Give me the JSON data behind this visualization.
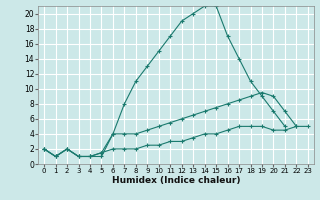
{
  "title": "",
  "xlabel": "Humidex (Indice chaleur)",
  "bg_color": "#cce8e8",
  "line_color": "#1a7a6e",
  "grid_color": "#ffffff",
  "xlim": [
    -0.5,
    23.5
  ],
  "ylim": [
    0,
    21
  ],
  "xticks": [
    0,
    1,
    2,
    3,
    4,
    5,
    6,
    7,
    8,
    9,
    10,
    11,
    12,
    13,
    14,
    15,
    16,
    17,
    18,
    19,
    20,
    21,
    22,
    23
  ],
  "yticks": [
    0,
    2,
    4,
    6,
    8,
    10,
    12,
    14,
    16,
    18,
    20
  ],
  "line1_x": [
    0,
    1,
    2,
    3,
    4,
    5,
    6,
    7,
    8,
    9,
    10,
    11,
    12,
    13,
    14,
    15,
    16,
    17,
    18,
    19,
    20,
    21
  ],
  "line1_y": [
    2,
    1,
    2,
    1,
    1,
    1,
    4,
    8,
    11,
    13,
    15,
    17,
    19,
    20,
    21,
    21,
    17,
    14,
    11,
    9,
    7,
    5
  ],
  "line2_x": [
    0,
    1,
    2,
    3,
    4,
    5,
    6,
    7,
    8,
    9,
    10,
    11,
    12,
    13,
    14,
    15,
    16,
    17,
    18,
    19,
    20,
    21,
    22
  ],
  "line2_y": [
    2,
    1,
    2,
    1,
    1,
    1.5,
    4,
    4,
    4,
    4.5,
    5,
    5.5,
    6,
    6.5,
    7,
    7.5,
    8,
    8.5,
    9,
    9.5,
    9,
    7,
    5
  ],
  "line3_x": [
    0,
    1,
    2,
    3,
    4,
    5,
    6,
    7,
    8,
    9,
    10,
    11,
    12,
    13,
    14,
    15,
    16,
    17,
    18,
    19,
    20,
    21,
    22,
    23
  ],
  "line3_y": [
    2,
    1,
    2,
    1,
    1,
    1.5,
    2,
    2,
    2,
    2.5,
    2.5,
    3,
    3,
    3.5,
    4,
    4,
    4.5,
    5,
    5,
    5,
    4.5,
    4.5,
    5,
    5
  ]
}
